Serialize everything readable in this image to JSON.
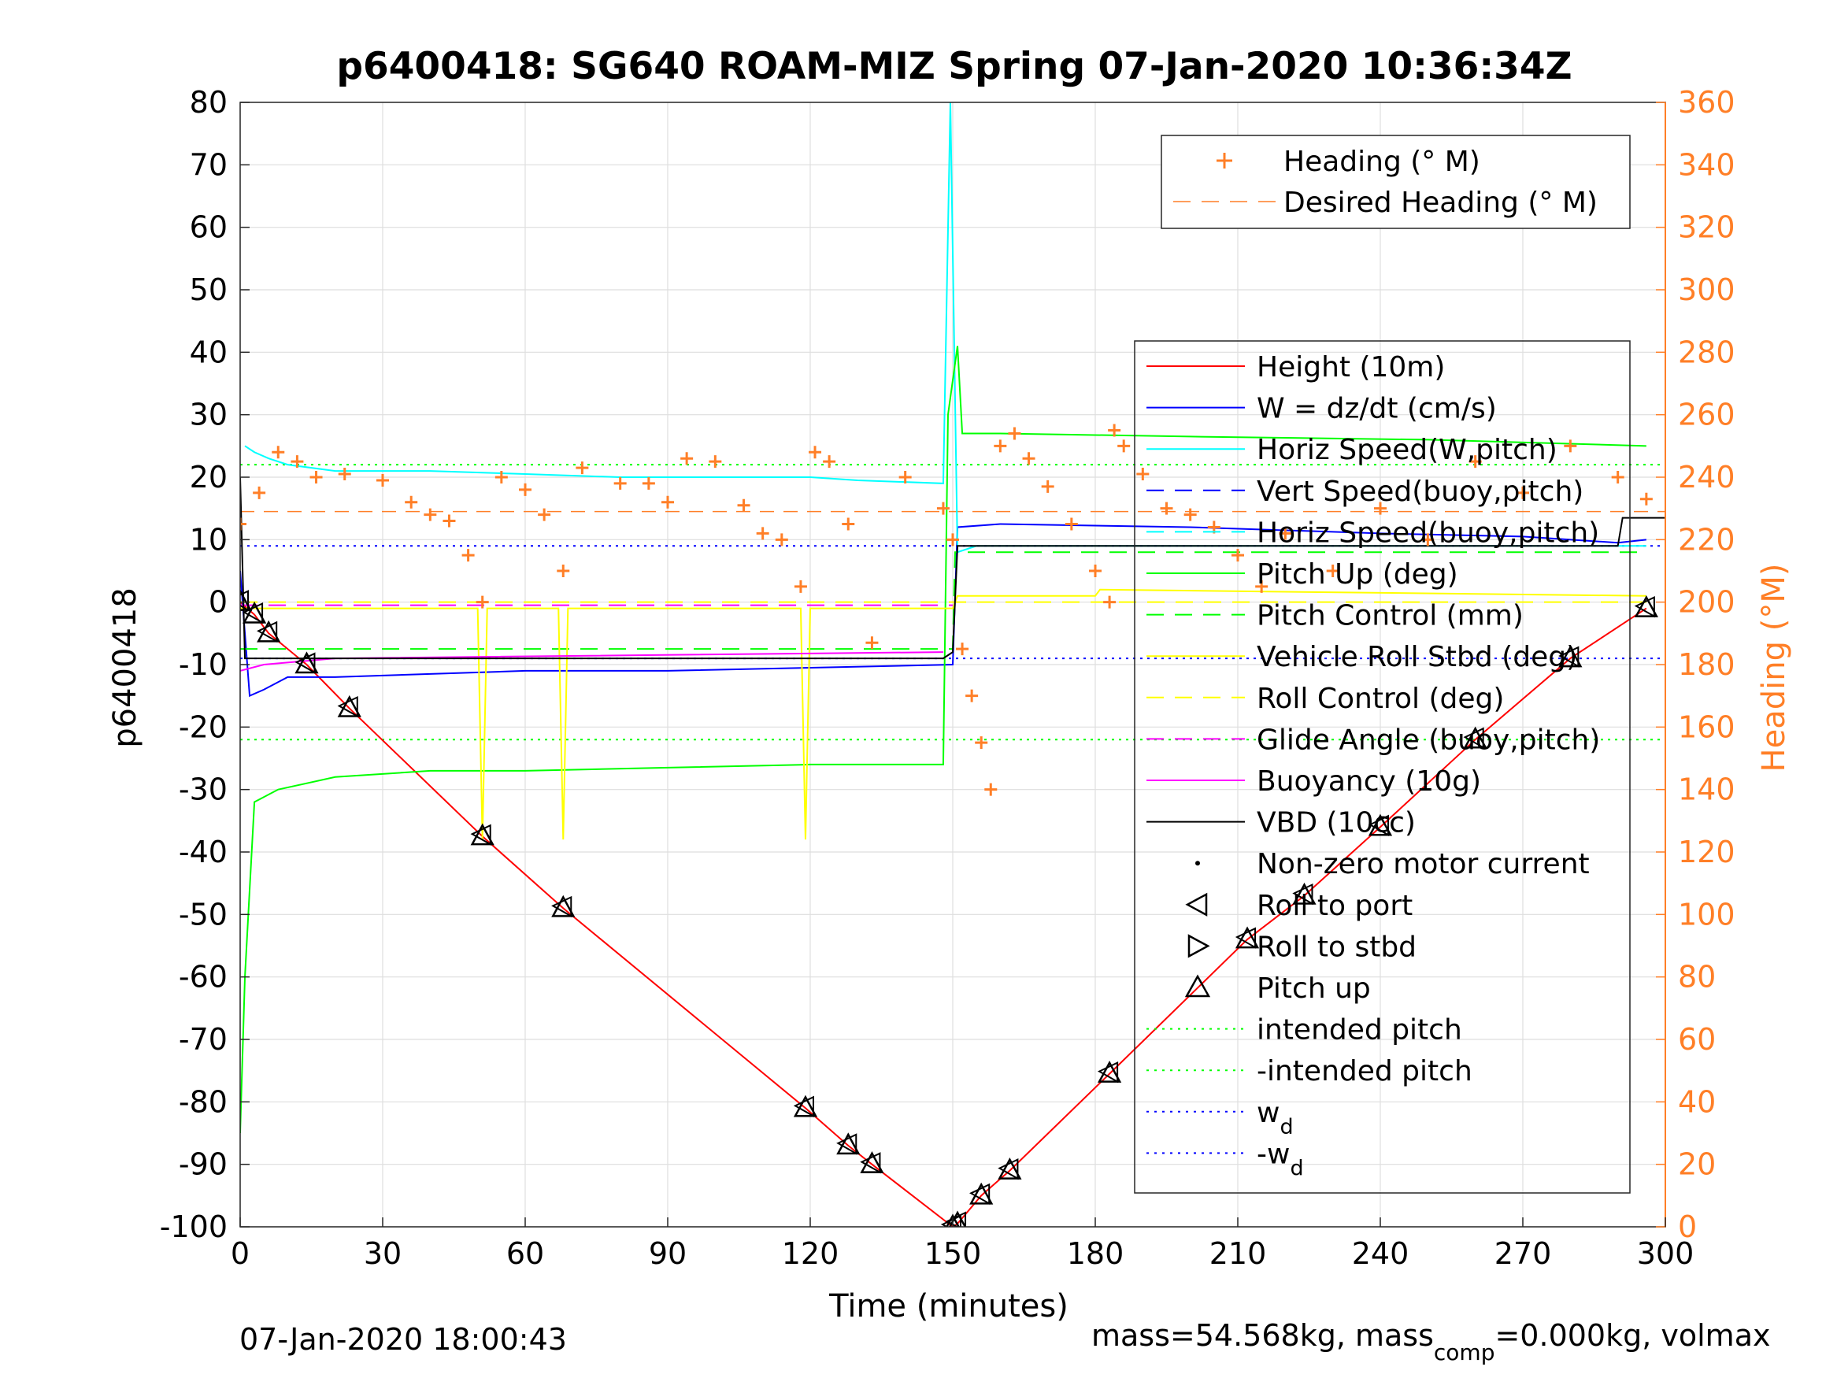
{
  "chart_data": {
    "type": "line",
    "title": "p6400418: SG640 ROAM-MIZ Spring 07-Jan-2020 10:36:34Z",
    "xlabel": "Time (minutes)",
    "ylabel": "p6400418",
    "ylabel_right": "Heading (°M)",
    "xlim": [
      0,
      300
    ],
    "ylim": [
      -100,
      80
    ],
    "ylim_right": [
      0,
      360
    ],
    "xticks": [
      0,
      30,
      60,
      90,
      120,
      150,
      180,
      210,
      240,
      270,
      300
    ],
    "yticks": [
      -100,
      -90,
      -80,
      -70,
      -60,
      -50,
      -40,
      -30,
      -20,
      -10,
      0,
      10,
      20,
      30,
      40,
      50,
      60,
      70,
      80
    ],
    "yticks_right": [
      0,
      20,
      40,
      60,
      80,
      100,
      120,
      140,
      160,
      180,
      200,
      220,
      240,
      260,
      280,
      300,
      320,
      340,
      360
    ],
    "grid": true,
    "footer_left": "07-Jan-2020 18:00:43",
    "footer_right_parts": [
      "mass=54.568kg, mass",
      "comp",
      "=0.000kg, volmax"
    ],
    "legend_heading": {
      "placement": "top-right",
      "entries": [
        {
          "label": "Heading (° M)",
          "color": "#ff7f27",
          "style": "plus"
        },
        {
          "label": "Desired Heading (° M)",
          "color": "#ff7f27",
          "style": "dashed"
        }
      ]
    },
    "legend_main": {
      "placement": "right",
      "entries": [
        {
          "label": "Height (10m)",
          "color": "#ff0000",
          "style": "solid"
        },
        {
          "label": "W = dz/dt (cm/s)",
          "color": "#0000ff",
          "style": "solid"
        },
        {
          "label": "Horiz Speed(W,pitch)",
          "color": "#00ffff",
          "style": "solid"
        },
        {
          "label": "Vert Speed(buoy,pitch)",
          "color": "#0000ff",
          "style": "dashed"
        },
        {
          "label": "Horiz Speed(buoy,pitch)",
          "color": "#00ffff",
          "style": "dashed"
        },
        {
          "label": "Pitch Up (deg)",
          "color": "#00ff00",
          "style": "solid"
        },
        {
          "label": "Pitch Control (mm)",
          "color": "#00ff00",
          "style": "dashed"
        },
        {
          "label": "Vehicle Roll Stbd (deg)",
          "color": "#ffff00",
          "style": "solid"
        },
        {
          "label": "Roll Control (deg)",
          "color": "#ffff00",
          "style": "dashed"
        },
        {
          "label": "Glide Angle (buoy,pitch)",
          "color": "#ff00ff",
          "style": "dashed"
        },
        {
          "label": "Buoyancy (10g)",
          "color": "#ff00ff",
          "style": "solid"
        },
        {
          "label": "VBD (10cc)",
          "color": "#000000",
          "style": "solid"
        },
        {
          "label": "Non-zero motor current",
          "color": "#000000",
          "style": "dot"
        },
        {
          "label": "Roll to port",
          "color": "#000000",
          "style": "tri-left"
        },
        {
          "label": "Roll to stbd",
          "color": "#000000",
          "style": "tri-right"
        },
        {
          "label": "Pitch up",
          "color": "#000000",
          "style": "tri-up"
        },
        {
          "label": "intended pitch",
          "color": "#00ff00",
          "style": "dotted"
        },
        {
          "label": "-intended pitch",
          "color": "#00ff00",
          "style": "dotted"
        },
        {
          "label": "w",
          "sub": "d",
          "color": "#0000ff",
          "style": "dotted"
        },
        {
          "label": "-w",
          "sub": "d",
          "color": "#0000ff",
          "style": "dotted"
        }
      ]
    },
    "reference_lines": {
      "intended_pitch": 22,
      "minus_intended_pitch": -22,
      "w_d": 9,
      "minus_w_d": -9,
      "desired_heading_deg": 229
    },
    "series": [
      {
        "name": "Height (10m)",
        "color": "#ff0000",
        "axis": "left",
        "x": [
          0,
          3,
          6,
          14,
          23,
          51,
          68,
          119,
          128,
          133,
          150,
          151,
          156,
          162,
          183,
          212,
          224,
          240,
          260,
          280,
          296
        ],
        "y": [
          0,
          -2,
          -5,
          -10,
          -17,
          -37.5,
          -49,
          -81,
          -87,
          -90,
          -100,
          -99.5,
          -95,
          -91,
          -75.5,
          -54,
          -47,
          -36,
          -22,
          -9,
          -1
        ]
      },
      {
        "name": "W = dz/dt (cm/s)",
        "color": "#0000ff",
        "axis": "left",
        "x": [
          0,
          2,
          5,
          10,
          20,
          40,
          60,
          90,
          120,
          150,
          151,
          160,
          200,
          240,
          270,
          290,
          296
        ],
        "y": [
          5,
          -15,
          -14,
          -12,
          -12,
          -11.5,
          -11,
          -11,
          -10.5,
          -10,
          12,
          12.5,
          12,
          11,
          10.5,
          9.5,
          10
        ]
      },
      {
        "name": "Horiz Speed(W,pitch)",
        "color": "#00ffff",
        "axis": "left",
        "x": [
          1,
          3,
          6,
          10,
          20,
          40,
          60,
          80,
          100,
          120,
          130,
          148,
          149.5,
          151,
          155,
          200,
          250,
          296
        ],
        "y": [
          25,
          24,
          23,
          22,
          21,
          21,
          20.5,
          20,
          20,
          20,
          19.5,
          19,
          80,
          8,
          9,
          9,
          9,
          9
        ]
      },
      {
        "name": "Pitch Up (deg)",
        "color": "#00ff00",
        "axis": "left",
        "x": [
          0,
          1,
          3,
          8,
          20,
          40,
          60,
          90,
          120,
          148,
          149,
          151,
          152,
          160,
          200,
          250,
          296
        ],
        "y": [
          -85,
          -60,
          -32,
          -30,
          -28,
          -27,
          -27,
          -26.5,
          -26,
          -26,
          30,
          41,
          27,
          27,
          26.5,
          26,
          25
        ]
      },
      {
        "name": "Pitch Control (mm)",
        "color": "#00ff00",
        "axis": "left",
        "x": [
          0,
          150,
          150.5,
          296
        ],
        "y": [
          -7.5,
          -7.5,
          8,
          8
        ]
      },
      {
        "name": "Vehicle Roll Stbd (deg)",
        "color": "#ffff00",
        "axis": "left",
        "x": [
          0,
          50,
          51,
          52,
          67,
          68,
          69,
          118,
          119,
          120,
          150,
          151,
          152,
          180,
          181,
          296
        ],
        "y": [
          -1,
          -1,
          -38,
          -1,
          -1,
          -38,
          -1,
          -1,
          -38,
          -1,
          -1,
          1,
          1,
          1,
          2,
          1
        ]
      },
      {
        "name": "Roll Control (deg)",
        "color": "#ffff00",
        "axis": "left",
        "x": [
          0,
          296
        ],
        "y": [
          0,
          0
        ]
      },
      {
        "name": "Glide Angle (buoy,pitch)",
        "color": "#ff00ff",
        "axis": "left",
        "x": [
          0,
          150
        ],
        "y": [
          -0.5,
          -0.5
        ]
      },
      {
        "name": "Buoyancy (10g)",
        "color": "#ff00ff",
        "axis": "left",
        "x": [
          0,
          5,
          20,
          148
        ],
        "y": [
          -11,
          -10,
          -9,
          -8
        ]
      },
      {
        "name": "VBD (10cc)",
        "color": "#000000",
        "axis": "left",
        "x": [
          0,
          1,
          148,
          150,
          151,
          290,
          291,
          300
        ],
        "y": [
          20,
          -9,
          -9,
          -8,
          9,
          9,
          13.5,
          13.5
        ]
      },
      {
        "name": "Heading (° M)",
        "color": "#ff7f27",
        "axis": "right",
        "x": [
          0,
          4,
          8,
          12,
          16,
          22,
          30,
          36,
          40,
          44,
          48,
          51,
          55,
          60,
          64,
          68,
          72,
          80,
          86,
          90,
          94,
          100,
          106,
          110,
          114,
          118,
          121,
          124,
          128,
          133,
          140,
          148,
          150,
          152,
          154,
          156,
          158,
          160,
          163,
          166,
          170,
          175,
          180,
          183,
          184,
          186,
          190,
          195,
          200,
          205,
          210,
          215,
          220,
          230,
          240,
          250,
          260,
          270,
          280,
          290,
          296
        ],
        "y": [
          225,
          235,
          248,
          245,
          240,
          241,
          239,
          232,
          228,
          226,
          215,
          200,
          240,
          236,
          228,
          210,
          243,
          238,
          238,
          232,
          246,
          245,
          231,
          222,
          220,
          205,
          248,
          245,
          225,
          187,
          240,
          230,
          220,
          185,
          170,
          155,
          140,
          250,
          254,
          246,
          237,
          225,
          210,
          200,
          255,
          250,
          241,
          230,
          228,
          224,
          215,
          205,
          222,
          210,
          230,
          220,
          245,
          235,
          250,
          240,
          233
        ]
      }
    ]
  }
}
